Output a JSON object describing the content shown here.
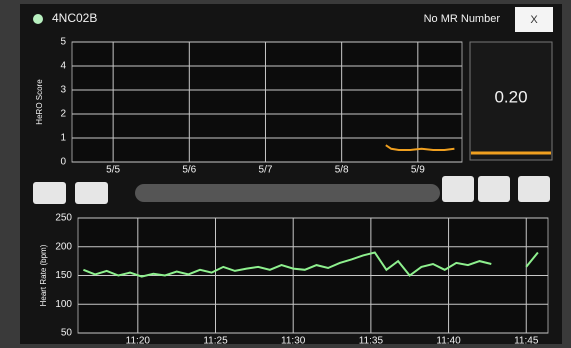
{
  "header": {
    "unit_id": "4NC02B",
    "mr_number": "No MR Number",
    "close": "X"
  },
  "score_panel": {
    "value": "0.20"
  },
  "chart_data": [
    {
      "type": "line",
      "ylabel": "HeRO Score",
      "color": "#f0a020",
      "x": [
        8.58,
        8.65,
        8.75,
        8.9,
        9.05,
        9.2,
        9.35,
        9.48
      ],
      "values": [
        0.7,
        0.55,
        0.5,
        0.5,
        0.55,
        0.5,
        0.5,
        0.55
      ],
      "xlim": [
        4.46,
        9.58
      ],
      "xticks": [
        {
          "value": 5,
          "label": "5/5"
        },
        {
          "value": 6,
          "label": "5/6"
        },
        {
          "value": 7,
          "label": "5/7"
        },
        {
          "value": 8,
          "label": "5/8"
        },
        {
          "value": 9,
          "label": "5/9"
        }
      ],
      "ylim": [
        0,
        5
      ],
      "yticks": [
        0,
        1,
        2,
        3,
        4,
        5
      ],
      "grid": true
    },
    {
      "type": "line",
      "ylabel": "Heart Rate (bpm)",
      "color": "#8ef08e",
      "x": [
        676.5,
        677.25,
        678,
        678.75,
        679.5,
        680.25,
        681,
        681.75,
        682.5,
        683.25,
        684,
        684.75,
        685.5,
        686.25,
        687,
        687.75,
        688.5,
        689.25,
        690,
        690.75,
        691.5,
        692.25,
        693,
        693.75,
        694.5,
        695.25,
        696,
        696.75,
        697.5,
        698.25,
        699,
        699.75,
        700.5,
        701.25,
        702,
        702.75,
        703.5,
        704.25,
        705,
        705.75
      ],
      "values": [
        160,
        152,
        158,
        150,
        155,
        148,
        153,
        150,
        157,
        152,
        160,
        155,
        165,
        158,
        162,
        165,
        160,
        168,
        162,
        160,
        168,
        163,
        172,
        178,
        185,
        190,
        160,
        175,
        150,
        165,
        170,
        160,
        172,
        168,
        175,
        170,
        null,
        null,
        165,
        190
      ],
      "xlim": [
        676.15,
        706.4
      ],
      "xticks": [
        {
          "value": 680,
          "label": "11:20"
        },
        {
          "value": 685,
          "label": "11:25"
        },
        {
          "value": 690,
          "label": "11:30"
        },
        {
          "value": 695,
          "label": "11:35"
        },
        {
          "value": 700,
          "label": "11:40"
        },
        {
          "value": 705,
          "label": "11:45"
        }
      ],
      "ylim": [
        50,
        250
      ],
      "yticks": [
        50,
        100,
        150,
        200,
        250
      ],
      "grid": true
    }
  ]
}
